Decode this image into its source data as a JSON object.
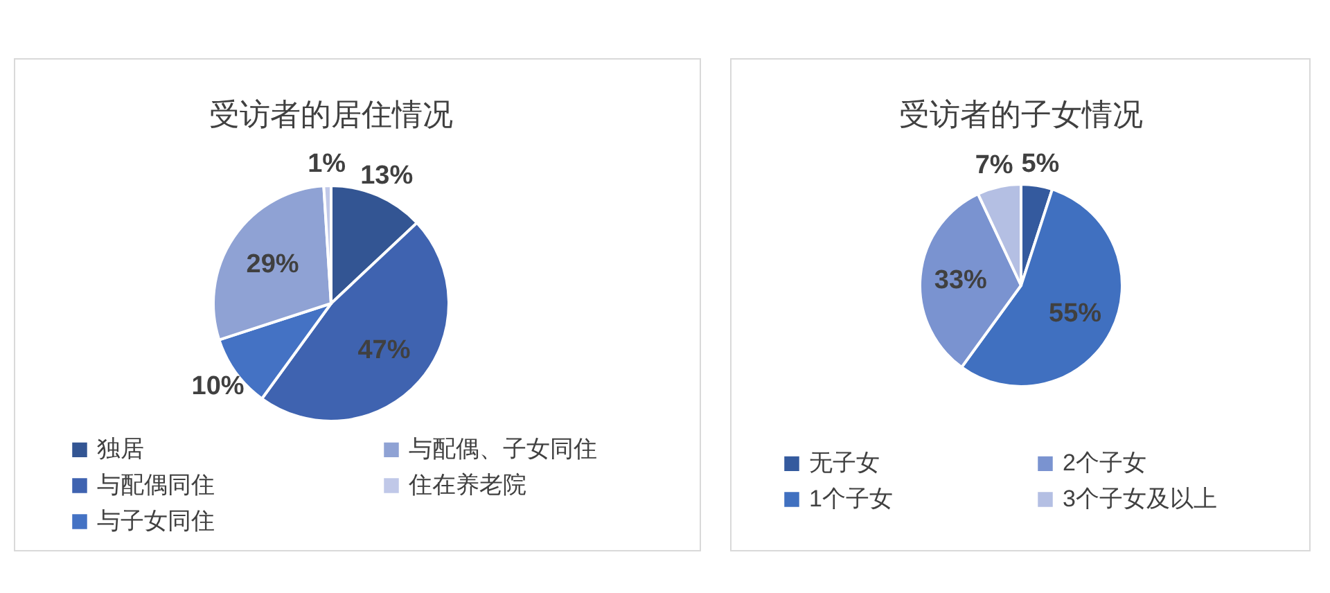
{
  "chart_data": [
    {
      "type": "pie",
      "title": "受访者的居住情况",
      "categories": [
        "独居",
        "与配偶同住",
        "与子女同住",
        "与配偶、子女同住",
        "住在养老院"
      ],
      "values": [
        13,
        47,
        10,
        29,
        1
      ],
      "value_labels": [
        "13%",
        "47%",
        "10%",
        "29%",
        "1%"
      ],
      "colors": [
        "#335593",
        "#3f63b0",
        "#4472c4",
        "#8fa2d4",
        "#c0c8e8"
      ],
      "legend": "bottom"
    },
    {
      "type": "pie",
      "title": "受访者的子女情况",
      "categories": [
        "无子女",
        "1个子女",
        "2个子女",
        "3个子女及以上"
      ],
      "values": [
        5,
        55,
        33,
        7
      ],
      "value_labels": [
        "5%",
        "55%",
        "33%",
        "7%"
      ],
      "colors": [
        "#345a9e",
        "#4070c0",
        "#7a93d0",
        "#b4bfe3"
      ],
      "legend": "bottom"
    }
  ]
}
